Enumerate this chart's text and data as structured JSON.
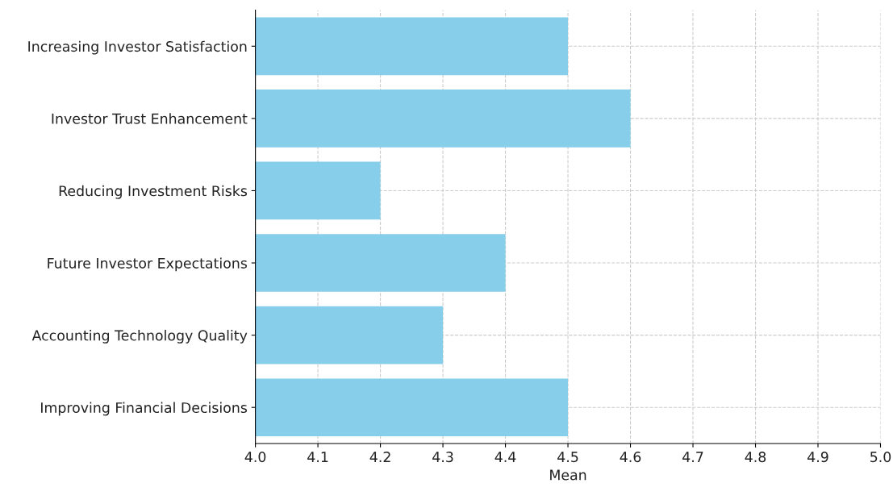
{
  "chart_data": {
    "type": "bar",
    "orientation": "horizontal",
    "xlabel": "Mean",
    "categories": [
      "Increasing Investor Satisfaction",
      "Investor Trust Enhancement",
      "Reducing Investment Risks",
      "Future Investor Expectations",
      "Accounting Technology Quality",
      "Improving Financial Decisions"
    ],
    "values": [
      4.5,
      4.6,
      4.2,
      4.4,
      4.3,
      4.5
    ],
    "color": "#87ceeb",
    "xlim": [
      4.0,
      5.0
    ],
    "xticks": [
      {
        "value": 4.0,
        "label": "4.0"
      },
      4.1,
      4.2,
      4.3,
      4.4,
      4.5,
      4.6,
      4.7,
      4.8,
      4.9,
      {
        "value": 5.0,
        "label": "5.0"
      }
    ],
    "grid": true,
    "line_style": "dashed"
  }
}
